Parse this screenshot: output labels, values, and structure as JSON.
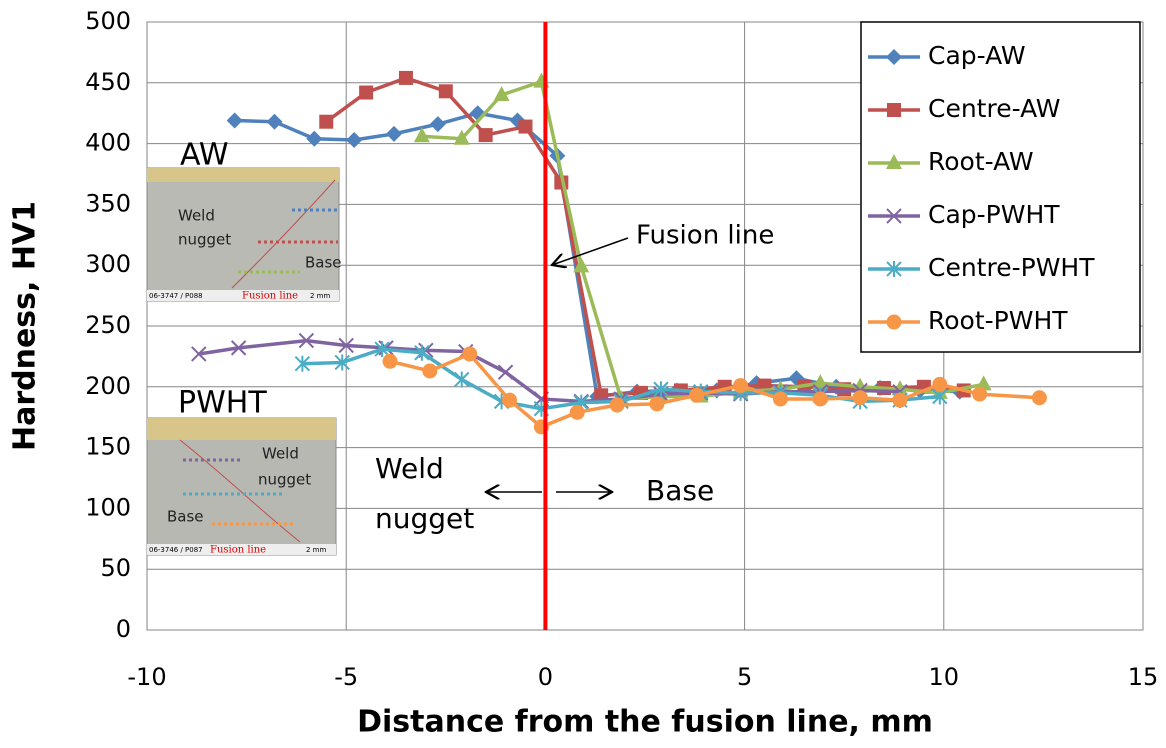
{
  "chart_data": {
    "type": "line",
    "xlabel": "Distance from the fusion line, mm",
    "ylabel": "Hardness, HV1",
    "xlim": [
      -10,
      15
    ],
    "xticks": [
      -10,
      -5,
      0,
      5,
      10,
      15
    ],
    "ylim": [
      0,
      500
    ],
    "yticks": [
      0,
      50,
      100,
      150,
      200,
      250,
      300,
      350,
      400,
      450,
      500
    ],
    "grid": true,
    "legend": "upper right",
    "fusion_line_color": "#ff0000",
    "annotations": {
      "fusion_line": "Fusion line",
      "weld_nugget": [
        "Weld",
        "nugget"
      ],
      "base": "Base",
      "aw": "AW",
      "pwht": "PWHT"
    },
    "insets": {
      "aw": {
        "weld_nugget": [
          "Weld",
          "nugget"
        ],
        "base": "Base",
        "fusion_line": "Fusion line",
        "code": "06-3747 / P088",
        "scale": "2 mm"
      },
      "pwht": {
        "weld_nugget": [
          "Weld",
          "nugget"
        ],
        "base": "Base",
        "fusion_line": "Fusion line",
        "code": "06-3746 / P087",
        "scale": "2 mm"
      }
    },
    "series": [
      {
        "name": "Cap-AW",
        "color": "#4f81bd",
        "marker": "diamond",
        "x": [
          -7.8,
          -6.8,
          -5.8,
          -4.8,
          -3.8,
          -2.7,
          -1.7,
          -0.7,
          0.3,
          1.3,
          2.3,
          3.3,
          4.3,
          5.3,
          6.3,
          7.3,
          8.4,
          9.4,
          10.4
        ],
        "values": [
          419,
          418,
          404,
          403,
          408,
          416,
          425,
          419,
          390,
          192,
          196,
          197,
          197,
          203,
          207,
          200,
          199,
          197,
          196
        ]
      },
      {
        "name": "Centre-AW",
        "color": "#c0504d",
        "marker": "square",
        "x": [
          -5.5,
          -4.5,
          -3.5,
          -2.5,
          -1.5,
          -0.5,
          0.4,
          1.4,
          2.4,
          3.4,
          4.5,
          5.5,
          6.5,
          7.5,
          8.5,
          9.5,
          10.5
        ],
        "values": [
          418,
          442,
          454,
          443,
          407,
          414,
          368,
          193,
          195,
          197,
          200,
          201,
          200,
          198,
          199,
          200,
          197
        ]
      },
      {
        "name": "Root-AW",
        "color": "#9bbb59",
        "marker": "triangle",
        "x": [
          -3.1,
          -2.1,
          -1.1,
          -0.1,
          0.9,
          1.9,
          2.9,
          3.9,
          4.9,
          5.9,
          6.9,
          7.9,
          8.9,
          9.9,
          11.0
        ],
        "values": [
          406,
          404,
          440,
          451,
          299,
          190,
          192,
          192,
          196,
          198,
          203,
          200,
          198,
          195,
          202
        ]
      },
      {
        "name": "Cap-PWHT",
        "color": "#8064a2",
        "marker": "x",
        "x": [
          -8.7,
          -7.7,
          -6.0,
          -5.0,
          -4.0,
          -3.0,
          -2.0,
          -1.0,
          -0.1,
          0.9,
          1.9,
          2.9,
          3.9,
          4.9,
          5.9,
          6.9,
          7.9,
          8.9
        ],
        "values": [
          227,
          232,
          238,
          234,
          232,
          230,
          229,
          212,
          190,
          188,
          190,
          194,
          195,
          194,
          196,
          196,
          197,
          196
        ]
      },
      {
        "name": "Centre-PWHT",
        "color": "#4bacc6",
        "marker": "star",
        "x": [
          -6.1,
          -5.1,
          -4.1,
          -3.1,
          -2.1,
          -1.1,
          -0.1,
          0.9,
          1.9,
          2.9,
          3.9,
          4.9,
          5.9,
          6.9,
          7.9,
          8.9,
          9.9
        ],
        "values": [
          219,
          220,
          231,
          228,
          206,
          188,
          182,
          187,
          188,
          198,
          196,
          195,
          195,
          193,
          188,
          189,
          192
        ]
      },
      {
        "name": "Root-PWHT",
        "color": "#f79646",
        "marker": "circle",
        "x": [
          -3.9,
          -2.9,
          -1.9,
          -0.9,
          -0.1,
          0.8,
          1.8,
          2.8,
          3.8,
          4.9,
          5.9,
          6.9,
          7.9,
          8.9,
          9.9,
          10.9,
          12.4
        ],
        "values": [
          221,
          213,
          227,
          189,
          167,
          179,
          185,
          186,
          193,
          201,
          190,
          190,
          191,
          189,
          202,
          194,
          191
        ]
      }
    ]
  }
}
